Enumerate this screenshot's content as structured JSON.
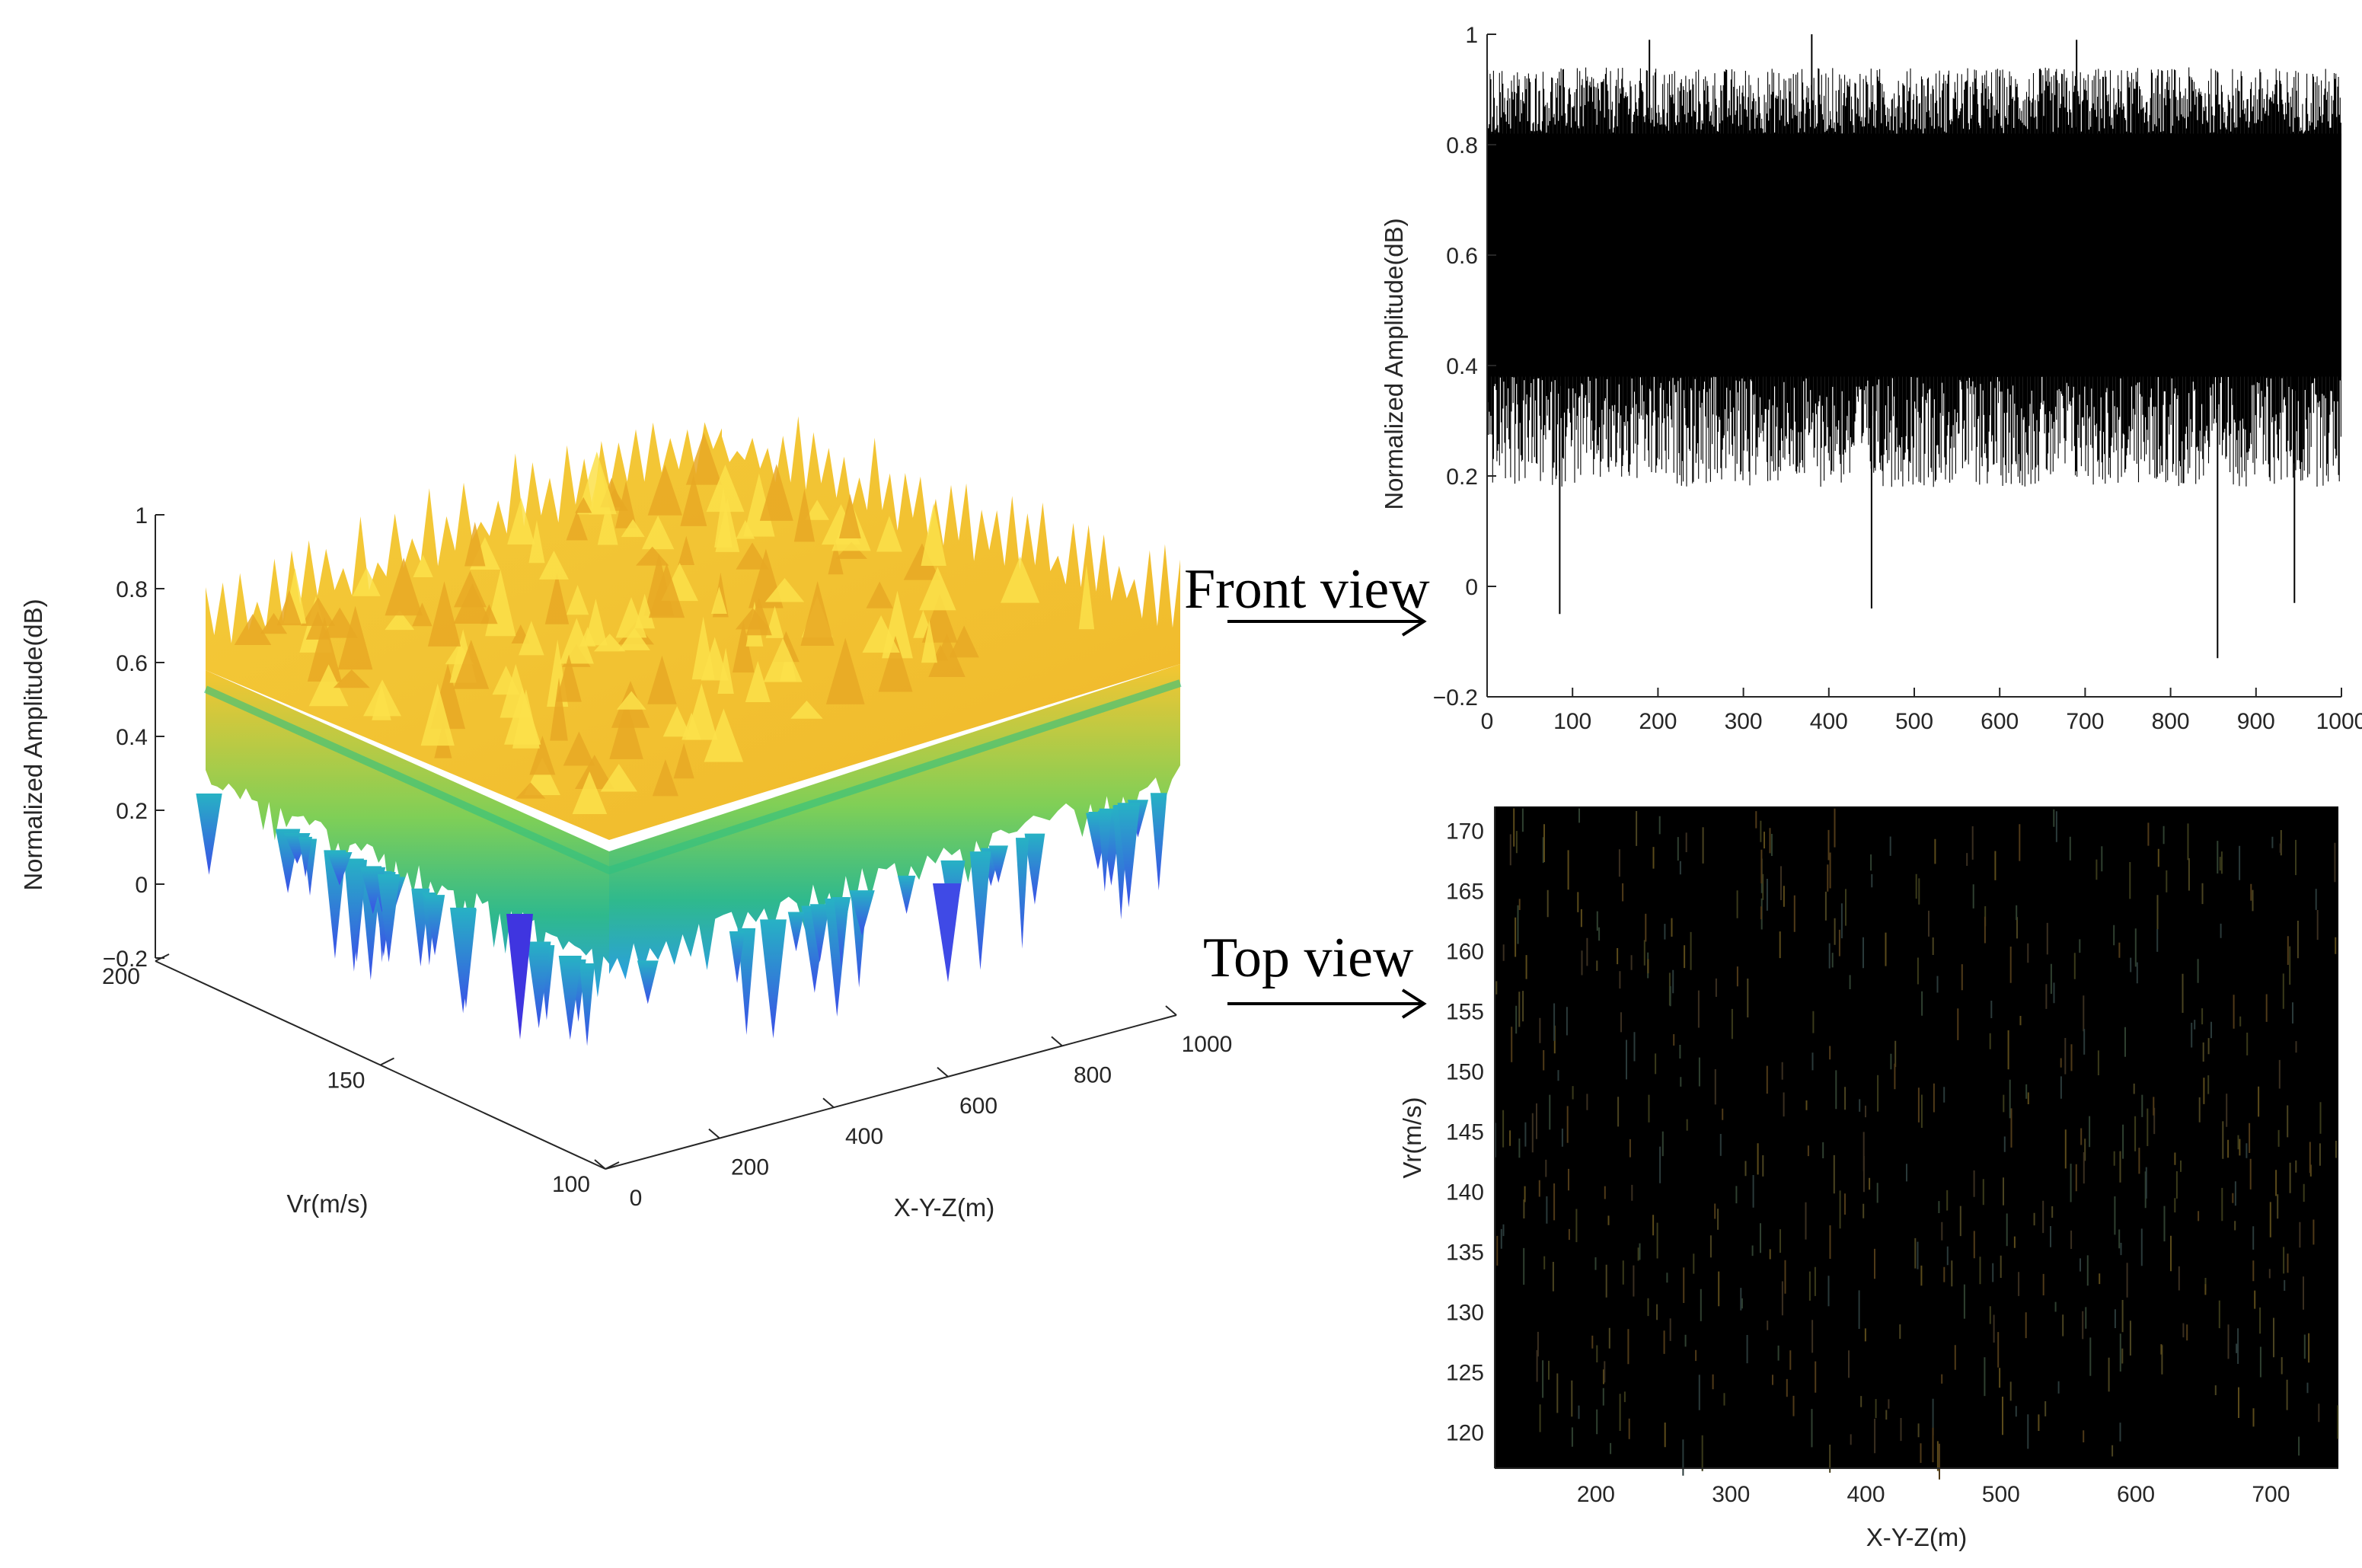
{
  "annotations": {
    "front_view": "Front view",
    "top_view": "Top view"
  },
  "colors": {
    "surface_high": "#f5c531",
    "surface_mid": "#2fc080",
    "surface_low": "#2f63e6",
    "front_line": "#000000",
    "top_background": "#000000"
  },
  "chart_data": [
    {
      "type": "area",
      "title": "",
      "xlabel": "X-Y-Z(m)",
      "ylabel": "Vr(m/s)",
      "zlabel": "Normalized Amplitude(dB)",
      "xlim": [
        0,
        1000
      ],
      "ylim": [
        100,
        200
      ],
      "zlim": [
        -0.2,
        1
      ],
      "x_ticks": [
        "0",
        "200",
        "400",
        "600",
        "800",
        "1000"
      ],
      "y_ticks": [
        "100",
        "150",
        "200"
      ],
      "z_ticks": [
        "-0.2",
        "0",
        "0.2",
        "0.4",
        "0.6",
        "0.8",
        "1"
      ],
      "surface_summary": {
        "typical_min": 0.2,
        "typical_max": 0.9,
        "mean": 0.6,
        "global_min": -0.2,
        "global_max": 1.0
      },
      "colormap": "parula",
      "grid": false
    },
    {
      "type": "line",
      "title": "",
      "xlabel": "",
      "ylabel": "Normalized Amplitude(dB)",
      "xlim": [
        0,
        1000
      ],
      "ylim": [
        -0.2,
        1
      ],
      "x_ticks": [
        "0",
        "100",
        "200",
        "300",
        "400",
        "500",
        "600",
        "700",
        "800",
        "900",
        "1000"
      ],
      "y_ticks": [
        "-0.2",
        "0",
        "0.2",
        "0.4",
        "0.6",
        "0.8",
        "1"
      ],
      "series_summary": {
        "band_low": 0.38,
        "band_high": 0.82,
        "mean": 0.6,
        "min": -0.13,
        "max": 1.0
      },
      "notable_points": [
        {
          "x": 85,
          "y": -0.05
        },
        {
          "x": 380,
          "y": 1.0
        },
        {
          "x": 450,
          "y": -0.04
        },
        {
          "x": 855,
          "y": -0.13
        },
        {
          "x": 945,
          "y": -0.03
        },
        {
          "x": 190,
          "y": 0.99
        },
        {
          "x": 690,
          "y": 0.99
        }
      ],
      "grid": false
    },
    {
      "type": "heatmap",
      "title": "",
      "xlabel": "X-Y-Z(m)",
      "ylabel": "Vr(m/s)",
      "xlim": [
        125,
        750
      ],
      "ylim": [
        117,
        172
      ],
      "x_ticks": [
        "200",
        "300",
        "400",
        "500",
        "600",
        "700"
      ],
      "y_ticks": [
        "120",
        "125",
        "130",
        "135",
        "140",
        "145",
        "150",
        "155",
        "160",
        "165",
        "170"
      ],
      "background": "#000000",
      "grid": false
    }
  ]
}
